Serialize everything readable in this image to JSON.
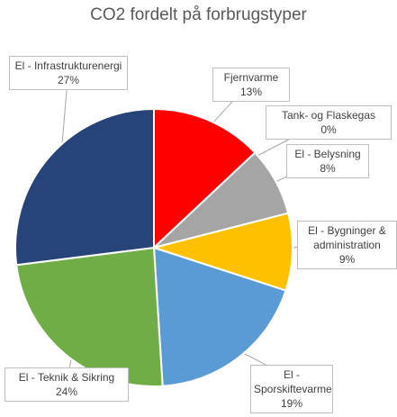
{
  "chart_data": {
    "type": "pie",
    "title": "CO2 fordelt på forbrugstyper",
    "categories": [
      "Fjernvarme",
      "Tank- og Flaskegas",
      "El - Belysning",
      "El - Bygninger & administration",
      "El - Sporskiftevarme",
      "El - Teknik & Sikring",
      "El - Infrastrukturenergi"
    ],
    "values": [
      13,
      0,
      8,
      9,
      19,
      24,
      27
    ],
    "value_labels": [
      "13%",
      "0%",
      "8%",
      "9%",
      "19%",
      "24%",
      "27%"
    ],
    "colors": [
      "#ff0000",
      "#ed7d31",
      "#a5a5a5",
      "#ffc000",
      "#5b9bd5",
      "#70ad47",
      "#264478"
    ]
  }
}
